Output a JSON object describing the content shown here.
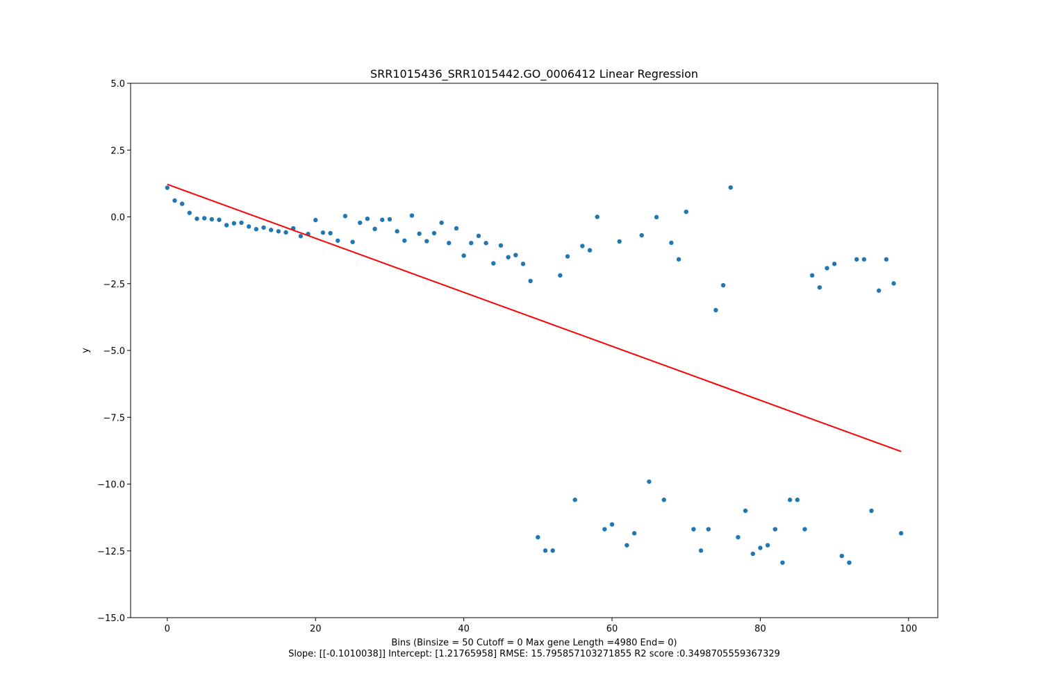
{
  "chart_data": {
    "type": "scatter",
    "title": "SRR1015436_SRR1015442.GO_0006412 Linear Regression",
    "xlabel": "Bins  (Binsize = 50 Cutoff = 0 Max gene Length =4980 End= 0)",
    "xlabel_line2": "Slope: [[-0.1010038]] Intercept: [1.21765958] RMSE: 15.795857103271855 R2 score :0.3498705559367329",
    "ylabel": "y",
    "xlim": [
      -4.95,
      103.95
    ],
    "ylim": [
      -15,
      5
    ],
    "x_ticks": [
      0,
      20,
      40,
      60,
      80,
      100
    ],
    "x_tick_labels": [
      "0",
      "20",
      "40",
      "60",
      "80",
      "100"
    ],
    "y_ticks": [
      5,
      2.5,
      0,
      -2.5,
      -5,
      -7.5,
      -10,
      -12.5,
      -15
    ],
    "y_tick_labels": [
      "5.0",
      "2.5",
      "0.0",
      "−2.5",
      "−5.0",
      "−7.5",
      "−10.0",
      "−12.5",
      "−15.0"
    ],
    "grid": false,
    "series": [
      {
        "kind": "points",
        "color": "#1f77b4",
        "x": [
          0,
          1,
          2,
          3,
          4,
          5,
          6,
          7,
          8,
          9,
          10,
          11,
          12,
          13,
          14,
          15,
          16,
          17,
          18,
          19,
          20,
          21,
          22,
          23,
          24,
          25,
          26,
          27,
          28,
          29,
          30,
          31,
          32,
          33,
          34,
          35,
          36,
          37,
          38,
          39,
          40,
          41,
          42,
          43,
          44,
          45,
          46,
          47,
          48,
          49,
          50,
          51,
          52,
          53,
          54,
          55,
          56,
          57,
          58,
          59,
          60,
          61,
          62,
          63,
          64,
          65,
          66,
          67,
          68,
          69,
          70,
          71,
          72,
          73,
          74,
          75,
          76,
          77,
          78,
          79,
          80,
          81,
          82,
          83,
          84,
          85,
          86,
          87,
          88,
          89,
          90,
          91,
          92,
          93,
          94,
          95,
          96,
          97,
          98,
          99
        ],
        "y": [
          1.09,
          0.61,
          0.49,
          0.15,
          -0.07,
          -0.05,
          -0.09,
          -0.11,
          -0.31,
          -0.24,
          -0.22,
          -0.36,
          -0.46,
          -0.4,
          -0.49,
          -0.54,
          -0.58,
          -0.43,
          -0.72,
          -0.64,
          -0.12,
          -0.59,
          -0.61,
          -0.89,
          0.03,
          -0.94,
          -0.22,
          -0.07,
          -0.45,
          -0.11,
          -0.09,
          -0.54,
          -0.89,
          0.05,
          -0.63,
          -0.91,
          -0.61,
          -0.22,
          -0.98,
          -0.43,
          -1.45,
          -0.98,
          -0.71,
          -0.98,
          -1.74,
          -1.07,
          -1.51,
          -1.43,
          -1.76,
          -2.4,
          -11.99,
          -12.49,
          -12.49,
          -2.19,
          -1.48,
          -10.59,
          -1.09,
          -1.25,
          0.0,
          -11.69,
          -11.51,
          -0.92,
          -12.29,
          -11.84,
          -0.69,
          -9.91,
          -0.01,
          -10.59,
          -0.97,
          -1.59,
          0.19,
          -11.69,
          -12.49,
          -11.69,
          -3.49,
          -2.56,
          1.1,
          -11.99,
          -11.0,
          -12.61,
          -12.39,
          -12.29,
          -11.69,
          -12.94,
          -10.59,
          -10.59,
          -11.69,
          -2.19,
          -2.64,
          -1.92,
          -1.76,
          -12.69,
          -12.94,
          -1.59,
          -1.59,
          -11.0,
          -2.76,
          -1.59,
          -2.49,
          -11.84
        ]
      },
      {
        "kind": "line",
        "color": "#ff0000",
        "x": [
          0,
          99
        ],
        "y": [
          1.21765958,
          -8.78171662
        ]
      }
    ]
  }
}
